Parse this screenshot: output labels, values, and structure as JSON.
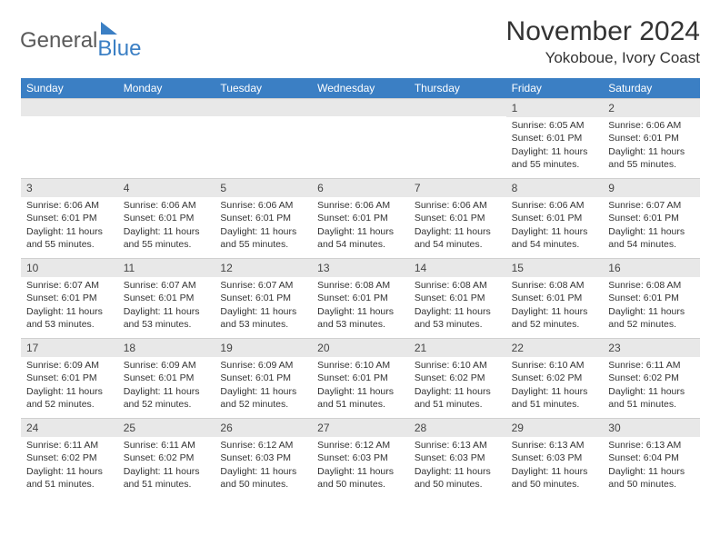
{
  "logo": {
    "text_gray": "General",
    "text_blue": "Blue"
  },
  "title": "November 2024",
  "location": "Yokoboue, Ivory Coast",
  "colors": {
    "header_bg": "#3b7fc4",
    "header_text": "#ffffff",
    "daynum_bg": "#e8e8e8",
    "text": "#333333",
    "logo_gray": "#5a5a5a",
    "logo_blue": "#3b7fc4",
    "page_bg": "#ffffff"
  },
  "typography": {
    "title_fontsize": 30,
    "location_fontsize": 17,
    "dayheader_fontsize": 12,
    "cell_fontsize": 10.5
  },
  "day_headers": [
    "Sunday",
    "Monday",
    "Tuesday",
    "Wednesday",
    "Thursday",
    "Friday",
    "Saturday"
  ],
  "weeks": [
    [
      {
        "blank": true
      },
      {
        "blank": true
      },
      {
        "blank": true
      },
      {
        "blank": true
      },
      {
        "blank": true
      },
      {
        "day": "1",
        "sunrise": "Sunrise: 6:05 AM",
        "sunset": "Sunset: 6:01 PM",
        "daylight": "Daylight: 11 hours and 55 minutes."
      },
      {
        "day": "2",
        "sunrise": "Sunrise: 6:06 AM",
        "sunset": "Sunset: 6:01 PM",
        "daylight": "Daylight: 11 hours and 55 minutes."
      }
    ],
    [
      {
        "day": "3",
        "sunrise": "Sunrise: 6:06 AM",
        "sunset": "Sunset: 6:01 PM",
        "daylight": "Daylight: 11 hours and 55 minutes."
      },
      {
        "day": "4",
        "sunrise": "Sunrise: 6:06 AM",
        "sunset": "Sunset: 6:01 PM",
        "daylight": "Daylight: 11 hours and 55 minutes."
      },
      {
        "day": "5",
        "sunrise": "Sunrise: 6:06 AM",
        "sunset": "Sunset: 6:01 PM",
        "daylight": "Daylight: 11 hours and 55 minutes."
      },
      {
        "day": "6",
        "sunrise": "Sunrise: 6:06 AM",
        "sunset": "Sunset: 6:01 PM",
        "daylight": "Daylight: 11 hours and 54 minutes."
      },
      {
        "day": "7",
        "sunrise": "Sunrise: 6:06 AM",
        "sunset": "Sunset: 6:01 PM",
        "daylight": "Daylight: 11 hours and 54 minutes."
      },
      {
        "day": "8",
        "sunrise": "Sunrise: 6:06 AM",
        "sunset": "Sunset: 6:01 PM",
        "daylight": "Daylight: 11 hours and 54 minutes."
      },
      {
        "day": "9",
        "sunrise": "Sunrise: 6:07 AM",
        "sunset": "Sunset: 6:01 PM",
        "daylight": "Daylight: 11 hours and 54 minutes."
      }
    ],
    [
      {
        "day": "10",
        "sunrise": "Sunrise: 6:07 AM",
        "sunset": "Sunset: 6:01 PM",
        "daylight": "Daylight: 11 hours and 53 minutes."
      },
      {
        "day": "11",
        "sunrise": "Sunrise: 6:07 AM",
        "sunset": "Sunset: 6:01 PM",
        "daylight": "Daylight: 11 hours and 53 minutes."
      },
      {
        "day": "12",
        "sunrise": "Sunrise: 6:07 AM",
        "sunset": "Sunset: 6:01 PM",
        "daylight": "Daylight: 11 hours and 53 minutes."
      },
      {
        "day": "13",
        "sunrise": "Sunrise: 6:08 AM",
        "sunset": "Sunset: 6:01 PM",
        "daylight": "Daylight: 11 hours and 53 minutes."
      },
      {
        "day": "14",
        "sunrise": "Sunrise: 6:08 AM",
        "sunset": "Sunset: 6:01 PM",
        "daylight": "Daylight: 11 hours and 53 minutes."
      },
      {
        "day": "15",
        "sunrise": "Sunrise: 6:08 AM",
        "sunset": "Sunset: 6:01 PM",
        "daylight": "Daylight: 11 hours and 52 minutes."
      },
      {
        "day": "16",
        "sunrise": "Sunrise: 6:08 AM",
        "sunset": "Sunset: 6:01 PM",
        "daylight": "Daylight: 11 hours and 52 minutes."
      }
    ],
    [
      {
        "day": "17",
        "sunrise": "Sunrise: 6:09 AM",
        "sunset": "Sunset: 6:01 PM",
        "daylight": "Daylight: 11 hours and 52 minutes."
      },
      {
        "day": "18",
        "sunrise": "Sunrise: 6:09 AM",
        "sunset": "Sunset: 6:01 PM",
        "daylight": "Daylight: 11 hours and 52 minutes."
      },
      {
        "day": "19",
        "sunrise": "Sunrise: 6:09 AM",
        "sunset": "Sunset: 6:01 PM",
        "daylight": "Daylight: 11 hours and 52 minutes."
      },
      {
        "day": "20",
        "sunrise": "Sunrise: 6:10 AM",
        "sunset": "Sunset: 6:01 PM",
        "daylight": "Daylight: 11 hours and 51 minutes."
      },
      {
        "day": "21",
        "sunrise": "Sunrise: 6:10 AM",
        "sunset": "Sunset: 6:02 PM",
        "daylight": "Daylight: 11 hours and 51 minutes."
      },
      {
        "day": "22",
        "sunrise": "Sunrise: 6:10 AM",
        "sunset": "Sunset: 6:02 PM",
        "daylight": "Daylight: 11 hours and 51 minutes."
      },
      {
        "day": "23",
        "sunrise": "Sunrise: 6:11 AM",
        "sunset": "Sunset: 6:02 PM",
        "daylight": "Daylight: 11 hours and 51 minutes."
      }
    ],
    [
      {
        "day": "24",
        "sunrise": "Sunrise: 6:11 AM",
        "sunset": "Sunset: 6:02 PM",
        "daylight": "Daylight: 11 hours and 51 minutes."
      },
      {
        "day": "25",
        "sunrise": "Sunrise: 6:11 AM",
        "sunset": "Sunset: 6:02 PM",
        "daylight": "Daylight: 11 hours and 51 minutes."
      },
      {
        "day": "26",
        "sunrise": "Sunrise: 6:12 AM",
        "sunset": "Sunset: 6:03 PM",
        "daylight": "Daylight: 11 hours and 50 minutes."
      },
      {
        "day": "27",
        "sunrise": "Sunrise: 6:12 AM",
        "sunset": "Sunset: 6:03 PM",
        "daylight": "Daylight: 11 hours and 50 minutes."
      },
      {
        "day": "28",
        "sunrise": "Sunrise: 6:13 AM",
        "sunset": "Sunset: 6:03 PM",
        "daylight": "Daylight: 11 hours and 50 minutes."
      },
      {
        "day": "29",
        "sunrise": "Sunrise: 6:13 AM",
        "sunset": "Sunset: 6:03 PM",
        "daylight": "Daylight: 11 hours and 50 minutes."
      },
      {
        "day": "30",
        "sunrise": "Sunrise: 6:13 AM",
        "sunset": "Sunset: 6:04 PM",
        "daylight": "Daylight: 11 hours and 50 minutes."
      }
    ]
  ]
}
